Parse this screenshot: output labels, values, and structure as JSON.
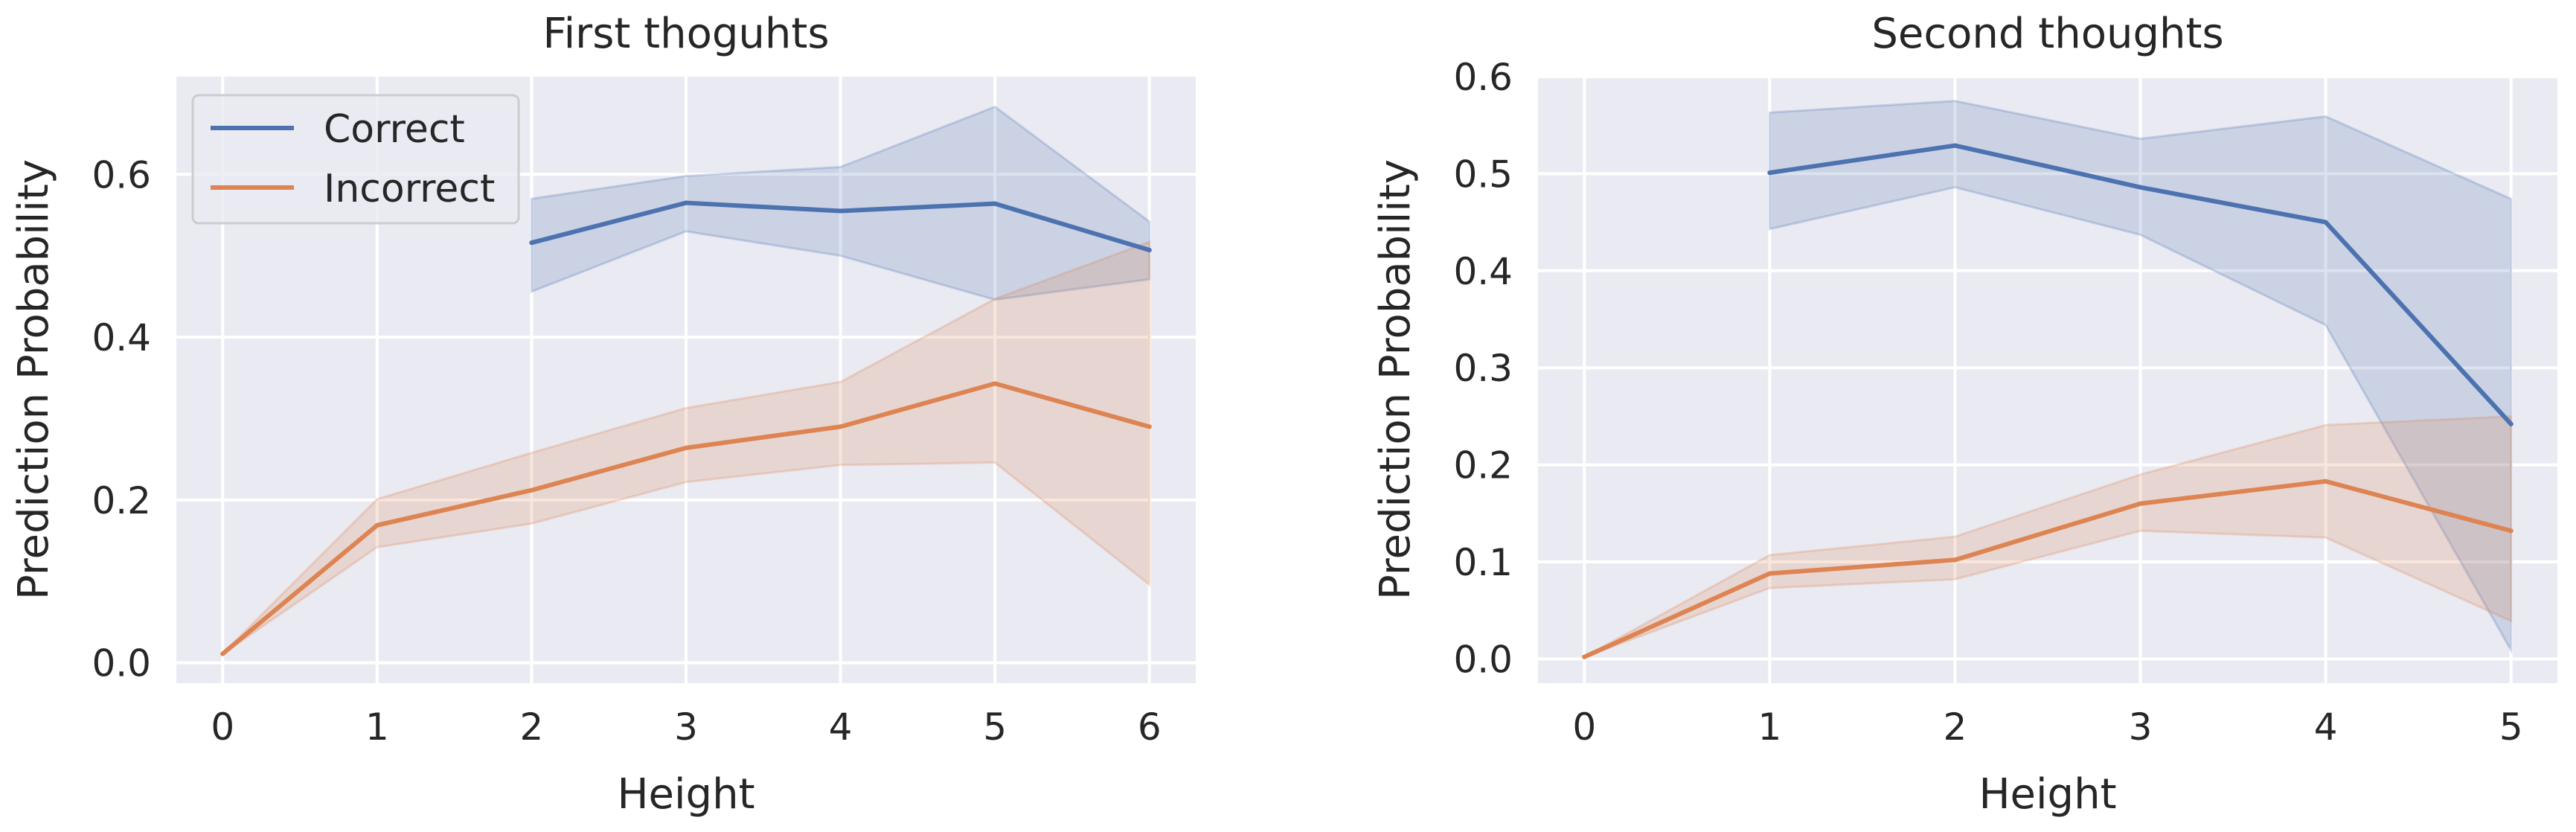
{
  "colors": {
    "correct": "#4c72b0",
    "incorrect": "#dd8452",
    "plot_background": "#eaeaf2",
    "grid": "#ffffff",
    "text": "#262626"
  },
  "chart_data": [
    {
      "type": "line",
      "title": "First thoguhts",
      "xlabel": "Height",
      "ylabel": "Prediction Probability",
      "xlim": [
        -0.3,
        6.3
      ],
      "ylim": [
        -0.025,
        0.72
      ],
      "xticks": [
        0,
        1,
        2,
        3,
        4,
        5,
        6
      ],
      "yticks": [
        0.0,
        0.2,
        0.4,
        0.6
      ],
      "xtick_labels": [
        "0",
        "1",
        "2",
        "3",
        "4",
        "5",
        "6"
      ],
      "ytick_labels": [
        "0.0",
        "0.2",
        "0.4",
        "0.6"
      ],
      "grid": true,
      "legend": {
        "placement": "upper-left",
        "entries": [
          {
            "label": "Correct",
            "series": "correct"
          },
          {
            "label": "Incorrect",
            "series": "incorrect"
          }
        ]
      },
      "series": [
        {
          "id": "correct",
          "name": "Correct",
          "x": [
            2,
            3,
            4,
            5,
            6
          ],
          "y": [
            0.516,
            0.565,
            0.555,
            0.564,
            0.507
          ],
          "lower": [
            0.456,
            0.53,
            0.5,
            0.446,
            0.471
          ],
          "upper": [
            0.57,
            0.598,
            0.609,
            0.683,
            0.542
          ]
        },
        {
          "id": "incorrect",
          "name": "Incorrect",
          "x": [
            0,
            1,
            2,
            3,
            4,
            5,
            6
          ],
          "y": [
            0.011,
            0.169,
            0.212,
            0.264,
            0.29,
            0.343,
            0.29
          ],
          "lower": [
            0.011,
            0.142,
            0.171,
            0.222,
            0.243,
            0.246,
            0.096
          ],
          "upper": [
            0.011,
            0.201,
            0.258,
            0.313,
            0.345,
            0.447,
            0.517
          ]
        }
      ]
    },
    {
      "type": "line",
      "title": "Second thoughts",
      "xlabel": "Height",
      "ylabel": "Prediction Probability",
      "xlim": [
        -0.25,
        5.25
      ],
      "ylim": [
        -0.025,
        0.6
      ],
      "xticks": [
        0,
        1,
        2,
        3,
        4,
        5
      ],
      "yticks": [
        0.0,
        0.1,
        0.2,
        0.3,
        0.4,
        0.5,
        0.6
      ],
      "xtick_labels": [
        "0",
        "1",
        "2",
        "3",
        "4",
        "5"
      ],
      "ytick_labels": [
        "0.0",
        "0.1",
        "0.2",
        "0.3",
        "0.4",
        "0.5",
        "0.6"
      ],
      "grid": true,
      "series": [
        {
          "id": "correct",
          "name": "Correct",
          "x": [
            1,
            2,
            3,
            4,
            5
          ],
          "y": [
            0.501,
            0.529,
            0.486,
            0.45,
            0.242
          ],
          "lower": [
            0.443,
            0.486,
            0.437,
            0.344,
            0.009
          ],
          "upper": [
            0.563,
            0.575,
            0.536,
            0.559,
            0.474
          ]
        },
        {
          "id": "incorrect",
          "name": "Incorrect",
          "x": [
            0,
            1,
            2,
            3,
            4,
            5
          ],
          "y": [
            0.002,
            0.088,
            0.102,
            0.16,
            0.183,
            0.132
          ],
          "lower": [
            0.002,
            0.073,
            0.082,
            0.132,
            0.125,
            0.039
          ],
          "upper": [
            0.002,
            0.107,
            0.126,
            0.19,
            0.241,
            0.25
          ]
        }
      ]
    }
  ]
}
